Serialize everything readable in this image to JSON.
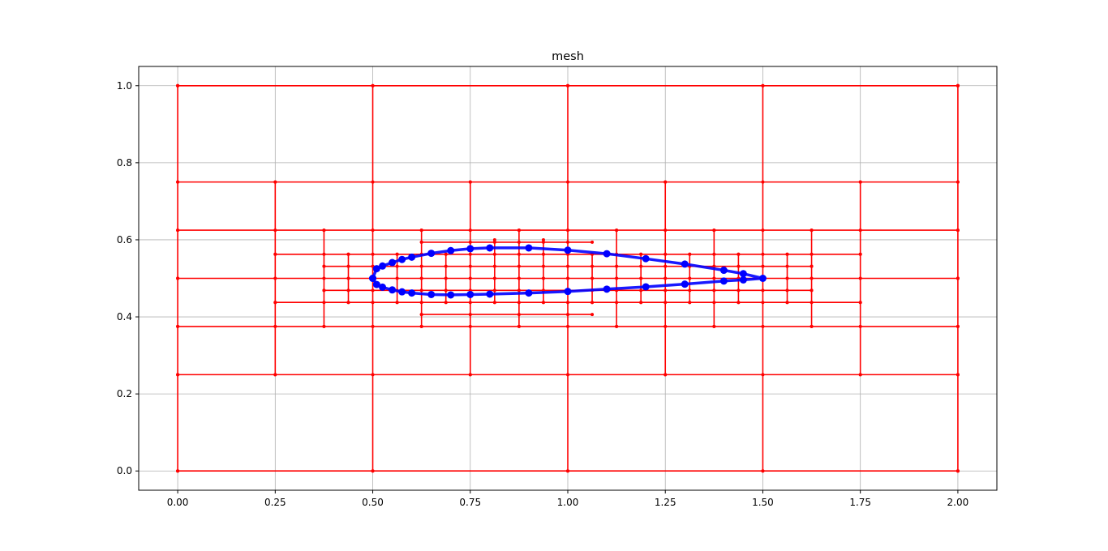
{
  "chart_data": {
    "type": "scatter",
    "title": "mesh",
    "xlabel": "",
    "ylabel": "",
    "xlim": [
      -0.1,
      2.1
    ],
    "ylim": [
      -0.05,
      1.05
    ],
    "xticks": [
      0.0,
      0.25,
      0.5,
      0.75,
      1.0,
      1.25,
      1.5,
      1.75,
      2.0
    ],
    "yticks": [
      0.0,
      0.2,
      0.4,
      0.6,
      0.8,
      1.0
    ],
    "xtick_labels": [
      "0.00",
      "0.25",
      "0.50",
      "0.75",
      "1.00",
      "1.25",
      "1.50",
      "1.75",
      "2.00"
    ],
    "ytick_labels": [
      "0.0",
      "0.2",
      "0.4",
      "0.6",
      "0.8",
      "1.0"
    ],
    "grid": true,
    "series": [
      {
        "role": "mesh-horizontal-lines",
        "color": "#ff0000",
        "lines": [
          {
            "y": 0.0,
            "x0": 0.0,
            "x1": 2.0
          },
          {
            "y": 0.25,
            "x0": 0.0,
            "x1": 2.0
          },
          {
            "y": 0.375,
            "x0": 0.0,
            "x1": 2.0
          },
          {
            "y": 0.4375,
            "x0": 0.25,
            "x1": 1.75
          },
          {
            "y": 0.5,
            "x0": 0.0,
            "x1": 2.0
          },
          {
            "y": 0.5625,
            "x0": 0.25,
            "x1": 1.75
          },
          {
            "y": 0.625,
            "x0": 0.0,
            "x1": 2.0
          },
          {
            "y": 0.75,
            "x0": 0.0,
            "x1": 2.0
          },
          {
            "y": 1.0,
            "x0": 0.0,
            "x1": 2.0
          },
          {
            "y": 0.46875,
            "x0": 0.375,
            "x1": 1.625
          },
          {
            "y": 0.53125,
            "x0": 0.375,
            "x1": 1.625
          },
          {
            "y": 0.59375,
            "x0": 0.625,
            "x1": 1.0625
          },
          {
            "y": 0.40625,
            "x0": 0.625,
            "x1": 1.0625
          }
        ]
      },
      {
        "role": "mesh-vertical-lines",
        "color": "#ff0000",
        "lines": [
          {
            "x": 0.0,
            "y0": 0.0,
            "y1": 1.0
          },
          {
            "x": 0.5,
            "y0": 0.0,
            "y1": 1.0
          },
          {
            "x": 1.0,
            "y0": 0.0,
            "y1": 1.0
          },
          {
            "x": 1.5,
            "y0": 0.0,
            "y1": 1.0
          },
          {
            "x": 2.0,
            "y0": 0.0,
            "y1": 1.0
          },
          {
            "x": 0.25,
            "y0": 0.25,
            "y1": 0.75
          },
          {
            "x": 0.75,
            "y0": 0.25,
            "y1": 0.75
          },
          {
            "x": 1.25,
            "y0": 0.25,
            "y1": 0.75
          },
          {
            "x": 1.75,
            "y0": 0.25,
            "y1": 0.75
          },
          {
            "x": 0.375,
            "y0": 0.375,
            "y1": 0.625
          },
          {
            "x": 0.625,
            "y0": 0.375,
            "y1": 0.625
          },
          {
            "x": 0.875,
            "y0": 0.375,
            "y1": 0.625
          },
          {
            "x": 1.125,
            "y0": 0.375,
            "y1": 0.625
          },
          {
            "x": 1.375,
            "y0": 0.375,
            "y1": 0.625
          },
          {
            "x": 1.625,
            "y0": 0.375,
            "y1": 0.625
          },
          {
            "x": 0.4375,
            "y0": 0.4375,
            "y1": 0.5625
          },
          {
            "x": 0.5625,
            "y0": 0.4375,
            "y1": 0.5625
          },
          {
            "x": 0.6875,
            "y0": 0.4375,
            "y1": 0.5625
          },
          {
            "x": 0.8125,
            "y0": 0.4375,
            "y1": 0.6
          },
          {
            "x": 0.9375,
            "y0": 0.4375,
            "y1": 0.6
          },
          {
            "x": 1.0625,
            "y0": 0.4375,
            "y1": 0.5625
          },
          {
            "x": 1.1875,
            "y0": 0.4375,
            "y1": 0.5625
          },
          {
            "x": 1.3125,
            "y0": 0.4375,
            "y1": 0.5625
          },
          {
            "x": 1.4375,
            "y0": 0.4375,
            "y1": 0.5625
          },
          {
            "x": 1.5625,
            "y0": 0.4375,
            "y1": 0.5625
          }
        ]
      },
      {
        "role": "boundary-polygon",
        "color": "#0000ff",
        "x": [
          0.5,
          0.51,
          0.525,
          0.55,
          0.575,
          0.6,
          0.65,
          0.7,
          0.75,
          0.8,
          0.9,
          1.0,
          1.1,
          1.2,
          1.3,
          1.4,
          1.45,
          1.5,
          1.45,
          1.4,
          1.3,
          1.2,
          1.1,
          1.0,
          0.9,
          0.8,
          0.75,
          0.7,
          0.65,
          0.6,
          0.575,
          0.55,
          0.525,
          0.51,
          0.5
        ],
        "y": [
          0.5,
          0.525,
          0.532,
          0.541,
          0.549,
          0.555,
          0.565,
          0.572,
          0.577,
          0.579,
          0.579,
          0.573,
          0.564,
          0.551,
          0.537,
          0.521,
          0.512,
          0.5,
          0.496,
          0.493,
          0.485,
          0.478,
          0.472,
          0.466,
          0.462,
          0.459,
          0.458,
          0.457,
          0.458,
          0.462,
          0.465,
          0.47,
          0.477,
          0.484,
          0.5
        ]
      }
    ]
  }
}
